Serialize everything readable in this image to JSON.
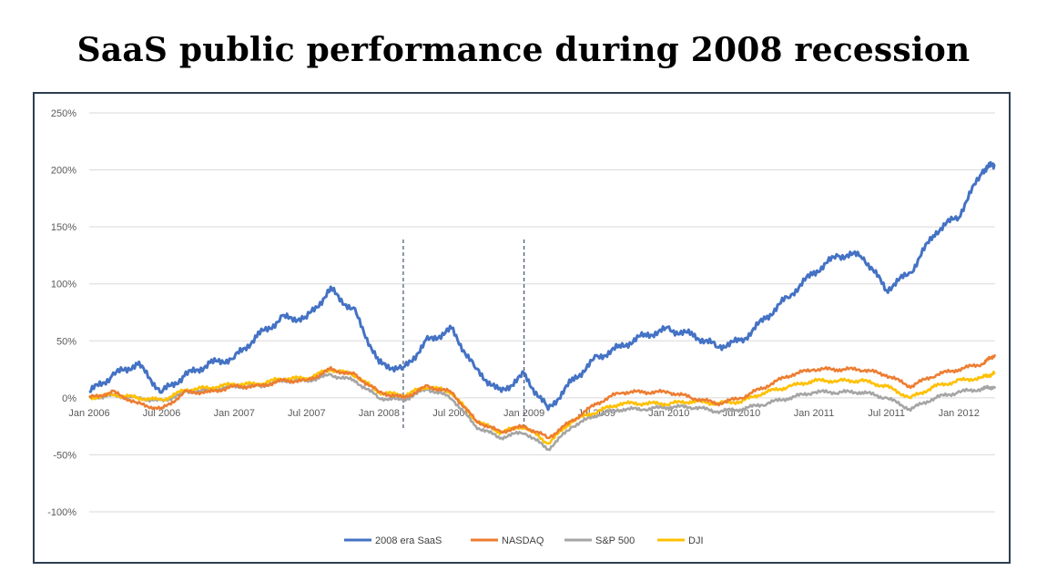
{
  "title": "SaaS public performance during 2008 recession",
  "chart_data": {
    "type": "line",
    "title": "SaaS public performance during 2008 recession",
    "xlabel": "",
    "ylabel": "",
    "ylim": [
      -100,
      250
    ],
    "y_ticks": [
      "250%",
      "200%",
      "150%",
      "100%",
      "50%",
      "0%",
      "-50%",
      "-100%"
    ],
    "y_tick_values": [
      250,
      200,
      150,
      100,
      50,
      0,
      -50,
      -100
    ],
    "x_ticks": [
      "Jan 2006",
      "Jul 2006",
      "Jan 2007",
      "Jul 2007",
      "Jan 2008",
      "Jul 2008",
      "Jan 2009",
      "Jul 2009",
      "Jan 2010",
      "Jul 2010",
      "Jan 2011",
      "Jul 2011",
      "Jan 2012"
    ],
    "x_range": [
      "Jan 2006",
      "Apr 2012"
    ],
    "grid": "horizontal",
    "legend_position": "bottom",
    "reference_lines": [
      "Mar 2008",
      "Jan 2009"
    ],
    "x": [
      "Jan 2006",
      "Mar 2006",
      "May 2006",
      "Jul 2006",
      "Sep 2006",
      "Nov 2006",
      "Jan 2007",
      "Mar 2007",
      "May 2007",
      "Jul 2007",
      "Sep 2007",
      "Nov 2007",
      "Jan 2008",
      "Mar 2008",
      "May 2008",
      "Jul 2008",
      "Sep 2008",
      "Nov 2008",
      "Jan 2009",
      "Mar 2009",
      "May 2009",
      "Jul 2009",
      "Sep 2009",
      "Nov 2009",
      "Jan 2010",
      "Mar 2010",
      "May 2010",
      "Jul 2010",
      "Sep 2010",
      "Nov 2010",
      "Jan 2011",
      "Mar 2011",
      "May 2011",
      "Jul 2011",
      "Sep 2011",
      "Nov 2011",
      "Jan 2012",
      "Mar 2012",
      "Apr 2012"
    ],
    "series": [
      {
        "name": "2008 era SaaS",
        "color": "#4472C4",
        "values": [
          5,
          20,
          30,
          5,
          20,
          30,
          35,
          55,
          70,
          70,
          95,
          75,
          30,
          25,
          50,
          60,
          25,
          5,
          20,
          -10,
          15,
          35,
          45,
          55,
          60,
          55,
          45,
          50,
          70,
          90,
          110,
          125,
          125,
          95,
          110,
          145,
          160,
          200,
          205
        ]
      },
      {
        "name": "NASDAQ",
        "color": "#ED7D31",
        "values": [
          0,
          5,
          -5,
          -10,
          5,
          5,
          10,
          10,
          15,
          15,
          25,
          20,
          5,
          0,
          10,
          5,
          -20,
          -30,
          -25,
          -35,
          -20,
          -5,
          5,
          5,
          5,
          0,
          -5,
          0,
          10,
          20,
          25,
          25,
          25,
          20,
          10,
          20,
          25,
          30,
          38
        ]
      },
      {
        "name": "S&P 500",
        "color": "#A5A5A5",
        "values": [
          0,
          2,
          0,
          -3,
          5,
          7,
          10,
          10,
          15,
          15,
          20,
          15,
          0,
          -2,
          8,
          0,
          -25,
          -35,
          -30,
          -45,
          -25,
          -15,
          -10,
          -10,
          -8,
          -8,
          -12,
          -10,
          -5,
          0,
          5,
          5,
          5,
          0,
          -10,
          0,
          5,
          8,
          10
        ]
      },
      {
        "name": "DJI",
        "color": "#FFC000",
        "values": [
          0,
          3,
          0,
          -2,
          7,
          9,
          12,
          12,
          17,
          17,
          25,
          20,
          5,
          2,
          10,
          5,
          -20,
          -30,
          -25,
          -40,
          -20,
          -12,
          -5,
          -5,
          -5,
          -3,
          -5,
          -3,
          5,
          10,
          15,
          15,
          15,
          10,
          0,
          10,
          15,
          18,
          22
        ]
      }
    ]
  }
}
